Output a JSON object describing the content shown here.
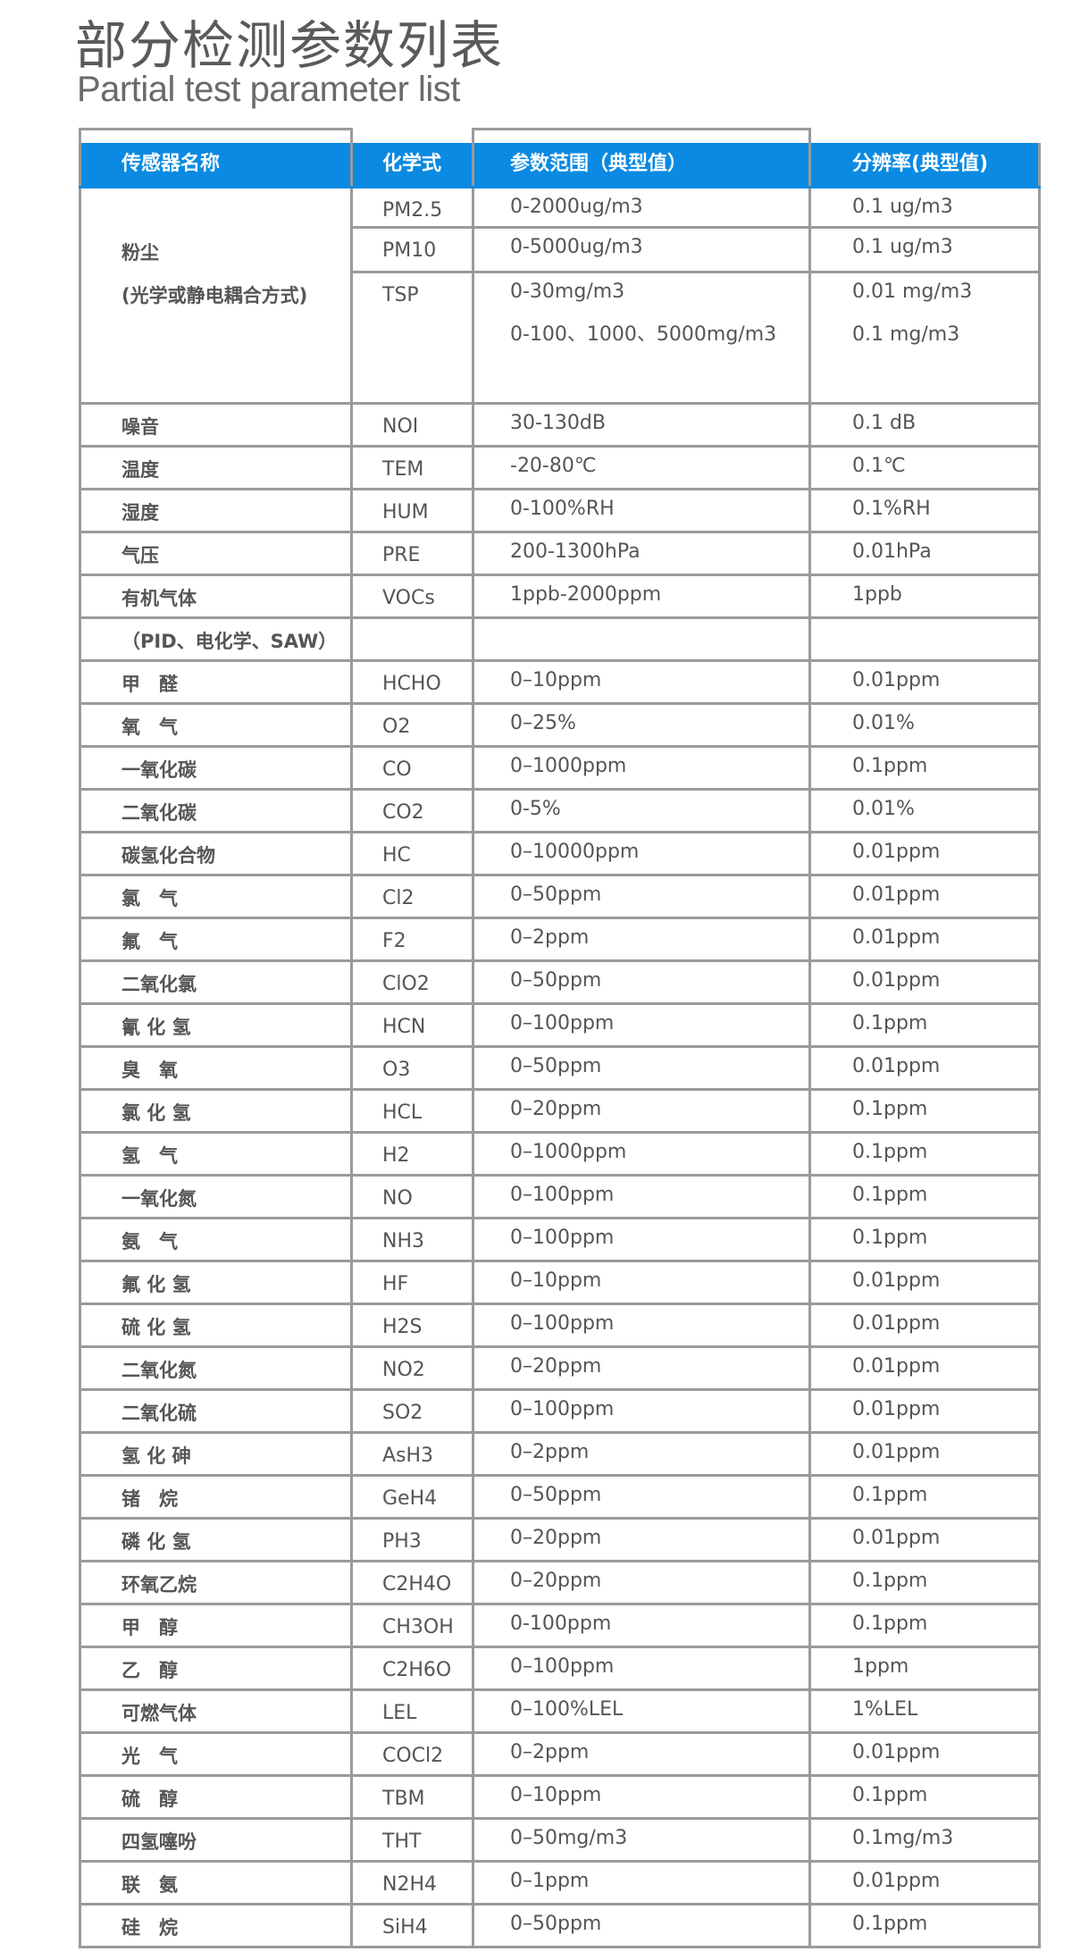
{
  "title": "部分检测参数列表",
  "subtitle": "Partial test parameter list",
  "header_color": "#0a8ae2",
  "columns": [
    "传感器名称",
    "化学式",
    "参数范围（典型值）",
    "分辨率(典型值)"
  ],
  "dust": {
    "name": "粉尘",
    "method": "(光学或静电耦合方式)",
    "rows": [
      {
        "formula": "PM2.5",
        "range": [
          "0-2000ug/m3"
        ],
        "resolution": [
          "0.1 ug/m3"
        ]
      },
      {
        "formula": "PM10",
        "range": [
          "0-5000ug/m3"
        ],
        "resolution": [
          "0.1 ug/m3"
        ]
      },
      {
        "formula": "TSP",
        "range": [
          "0-30mg/m3",
          "0-100、1000、5000mg/m3"
        ],
        "resolution": [
          "0.01 mg/m3",
          "0.1 mg/m3"
        ]
      }
    ]
  },
  "rows": [
    {
      "name": "噪音",
      "formula": "NOI",
      "range": "30-130dB",
      "resolution": "0.1 dB"
    },
    {
      "name": "温度",
      "formula": "TEM",
      "range": "-20-80℃",
      "resolution": "0.1℃"
    },
    {
      "name": "湿度",
      "formula": "HUM",
      "range": "0-100%RH",
      "resolution": "0.1%RH"
    },
    {
      "name": "气压",
      "formula": "PRE",
      "range": "200-1300hPa",
      "resolution": "0.01hPa"
    },
    {
      "name": "有机气体",
      "formula": "VOCs",
      "range": "1ppb-2000ppm",
      "resolution": "1ppb"
    },
    {
      "name": "（PID、电化学、SAW）",
      "formula": "",
      "range": "",
      "resolution": ""
    },
    {
      "name": "甲　醛",
      "formula": "HCHO",
      "range": "0–10ppm",
      "resolution": "0.01ppm"
    },
    {
      "name": "氧　气",
      "formula": "O2",
      "range": "0–25%",
      "resolution": "0.01%"
    },
    {
      "name": "一氧化碳",
      "formula": "CO",
      "range": "0–1000ppm",
      "resolution": "0.1ppm"
    },
    {
      "name": "二氧化碳",
      "formula": "CO2",
      "range": "0-5%",
      "resolution": "0.01%"
    },
    {
      "name": "碳氢化合物",
      "formula": "HC",
      "range": "0–10000ppm",
      "resolution": "0.01ppm"
    },
    {
      "name": "氯　气",
      "formula": "Cl2",
      "range": "0–50ppm",
      "resolution": "0.01ppm"
    },
    {
      "name": "氟　气",
      "formula": "F2",
      "range": "0–2ppm",
      "resolution": "0.01ppm"
    },
    {
      "name": "二氧化氯",
      "formula": "ClO2",
      "range": "0–50ppm",
      "resolution": "0.01ppm"
    },
    {
      "name": "氰 化 氢",
      "formula": "HCN",
      "range": "0–100ppm",
      "resolution": "0.1ppm"
    },
    {
      "name": "臭　氧",
      "formula": "O3",
      "range": "0–50ppm",
      "resolution": "0.01ppm"
    },
    {
      "name": "氯 化 氢",
      "formula": "HCL",
      "range": "0–20ppm",
      "resolution": "0.1ppm"
    },
    {
      "name": "氢　气",
      "formula": "H2",
      "range": "0–1000ppm",
      "resolution": "0.1ppm"
    },
    {
      "name": "一氧化氮",
      "formula": "NO",
      "range": "0–100ppm",
      "resolution": "0.1ppm"
    },
    {
      "name": "氨　气",
      "formula": "NH3",
      "range": "0–100ppm",
      "resolution": "0.1ppm"
    },
    {
      "name": "氟 化 氢",
      "formula": "HF",
      "range": "0–10ppm",
      "resolution": "0.01ppm"
    },
    {
      "name": "硫 化 氢",
      "formula": "H2S",
      "range": "0–100ppm",
      "resolution": "0.01ppm"
    },
    {
      "name": "二氧化氮",
      "formula": "NO2",
      "range": "0–20ppm",
      "resolution": "0.01ppm"
    },
    {
      "name": "二氧化硫",
      "formula": "SO2",
      "range": "0–100ppm",
      "resolution": "0.01ppm"
    },
    {
      "name": "氢 化 砷",
      "formula": "AsH3",
      "range": "0–2ppm",
      "resolution": "0.01ppm"
    },
    {
      "name": "锗　烷",
      "formula": "GeH4",
      "range": "0–50ppm",
      "resolution": "0.1ppm"
    },
    {
      "name": "磷 化 氢",
      "formula": "PH3",
      "range": "0–20ppm",
      "resolution": "0.01ppm"
    },
    {
      "name": "环氧乙烷",
      "formula": "C2H4O",
      "range": "0–20ppm",
      "resolution": "0.1ppm"
    },
    {
      "name": "甲　醇",
      "formula": "CH3OH",
      "range": "0-100ppm",
      "resolution": "0.1ppm"
    },
    {
      "name": "乙　醇",
      "formula": "C2H6O",
      "range": "0–100ppm",
      "resolution": "1ppm"
    },
    {
      "name": "可燃气体",
      "formula": "LEL",
      "range": "0–100%LEL",
      "resolution": "1%LEL"
    },
    {
      "name": "光　气",
      "formula": "COCl2",
      "range": "0–2ppm",
      "resolution": "0.01ppm"
    },
    {
      "name": "硫　醇",
      "formula": "TBM",
      "range": "0–10ppm",
      "resolution": "0.1ppm"
    },
    {
      "name": "四氢噻吩",
      "formula": "THT",
      "range": "0–50mg/m3",
      "resolution": "0.1mg/m3"
    },
    {
      "name": "联　氨",
      "formula": "N2H4",
      "range": "0–1ppm",
      "resolution": "0.01ppm"
    },
    {
      "name": "硅　烷",
      "formula": "SiH4",
      "range": "0–50ppm",
      "resolution": "0.1ppm"
    }
  ]
}
